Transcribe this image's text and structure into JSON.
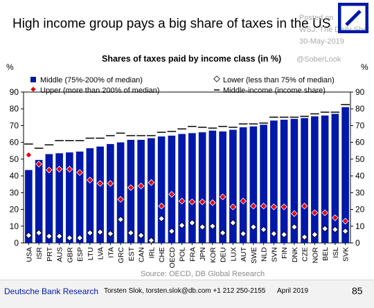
{
  "header": {
    "title": "High income group pays a big share of taxes in the US",
    "watermark_lines": [
      "Posted on",
      "WSJ. The Daily Shot",
      "30-May-2019"
    ],
    "handle": "@SoberLook"
  },
  "footer": {
    "brand": "Deutsche Bank Research",
    "contact": "Torsten Slok, torsten.slok@db.com  +1 212 250-2155",
    "date": "April 2019",
    "page": "85"
  },
  "colors": {
    "middle_bar": "#0018a8",
    "upper_marker": "#e30613",
    "lower_marker": "#ffffff",
    "logo": "#0018a8",
    "brand_text": "#0018a8"
  },
  "chart_data": {
    "type": "bar",
    "title": "Shares of taxes paid by income class (in %)",
    "ylabel_left": "%",
    "ylabel_right": "%",
    "ylim": [
      0,
      90
    ],
    "yticks": [
      0,
      10,
      20,
      30,
      40,
      50,
      60,
      70,
      80,
      90
    ],
    "source": "Source: OECD, DB Global Research",
    "legend": {
      "middle": "Middle (75%-200% of median)",
      "upper": "Upper (more than 200% of median)",
      "lower": "Lower (less than 75% of median)",
      "middle_income": "Middle-income (income share)"
    },
    "categories": [
      "USA",
      "ISR",
      "PRT",
      "AUS",
      "GBR",
      "ESP",
      "LTU",
      "LVA",
      "ITA",
      "GRC",
      "EST",
      "CAN",
      "IRL",
      "CHE",
      "OECD",
      "POL",
      "FRA",
      "JPN",
      "KOR",
      "DEU",
      "LUX",
      "AUT",
      "SWE",
      "NLD",
      "SVN",
      "FIN",
      "DNK",
      "CZE",
      "NOR",
      "BEL",
      "ISL",
      "SVK"
    ],
    "series": [
      {
        "name": "Middle (75%-200% of median)",
        "kind": "bar",
        "values": [
          43.5,
          49.5,
          53,
          53.5,
          54,
          54.5,
          56.5,
          57.5,
          59,
          60,
          61.5,
          61.5,
          62.5,
          63.5,
          64,
          65,
          65.5,
          66,
          67,
          66.5,
          67.5,
          69,
          69.5,
          70.5,
          73,
          73.5,
          74,
          74.5,
          75.5,
          76,
          77,
          81
        ]
      },
      {
        "name": "Upper (more than 200% of median)",
        "kind": "marker",
        "values": [
          52.5,
          47,
          43.5,
          44,
          44,
          42,
          37.5,
          35.5,
          35.5,
          26,
          33,
          34,
          36,
          22,
          29,
          25,
          24.5,
          24.5,
          24,
          27.5,
          21.5,
          25,
          22,
          22,
          21.5,
          21.5,
          17.5,
          22,
          18,
          18,
          15,
          13
        ]
      },
      {
        "name": "Lower (less than 75% of median)",
        "kind": "marker",
        "values": [
          4.5,
          6,
          4,
          4,
          3,
          3,
          6,
          6.5,
          5.5,
          14,
          6,
          4.5,
          1.5,
          14.5,
          7,
          10.5,
          12,
          9.5,
          10,
          6,
          12,
          5.5,
          9.5,
          8,
          5.5,
          5,
          9.5,
          3.5,
          5,
          8.5,
          8,
          7
        ]
      },
      {
        "name": "Middle-income (income share)",
        "kind": "dash",
        "values": [
          59,
          56.5,
          58.5,
          61,
          61,
          61,
          62.5,
          62.5,
          64,
          65.5,
          64,
          64,
          64,
          66,
          66.5,
          68,
          69.5,
          69,
          68.5,
          69.5,
          69,
          71,
          71,
          71.5,
          75,
          75,
          75,
          75.5,
          77,
          78,
          78,
          82.5
        ]
      }
    ]
  }
}
